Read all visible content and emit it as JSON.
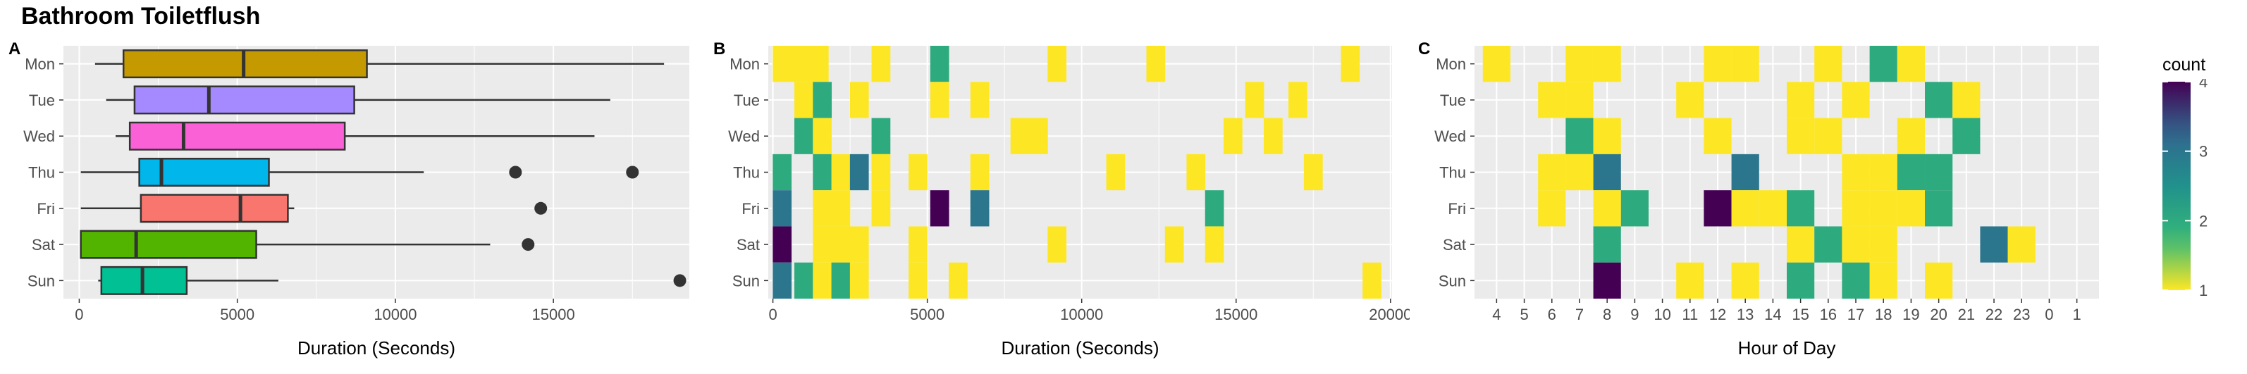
{
  "title": "Bathroom Toiletflush",
  "panel_labels": [
    "A",
    "B",
    "C"
  ],
  "colors": {
    "panel_bg": "#ebebeb",
    "grid": "#ffffff",
    "box_outline": "#333333",
    "viridis_low": "#fde725",
    "viridis_mid1": "#35b779",
    "viridis_mid2": "#21918c",
    "viridis_mid3": "#31688e",
    "viridis_high": "#440154"
  },
  "chart_data": [
    {
      "type": "box",
      "panel": "A",
      "categories": [
        "Mon",
        "Tue",
        "Wed",
        "Thu",
        "Fri",
        "Sat",
        "Sun"
      ],
      "xlabel": "Duration (Seconds)",
      "ylabel": "",
      "xlim": [
        -500,
        19300
      ],
      "xticks": [
        0,
        5000,
        10000,
        15000
      ],
      "grid": true,
      "boxes": [
        {
          "day": "Mon",
          "min": 500,
          "q1": 1400,
          "median": 5200,
          "q3": 9100,
          "max": 18500,
          "outliers": [],
          "color": "#c49a00"
        },
        {
          "day": "Tue",
          "min": 850,
          "q1": 1750,
          "median": 4100,
          "q3": 8700,
          "max": 16800,
          "outliers": [],
          "color": "#a58aff"
        },
        {
          "day": "Wed",
          "min": 1150,
          "q1": 1600,
          "median": 3300,
          "q3": 8400,
          "max": 16300,
          "outliers": [],
          "color": "#fb61d7"
        },
        {
          "day": "Thu",
          "min": 50,
          "q1": 1900,
          "median": 2600,
          "q3": 6000,
          "max": 10900,
          "outliers": [
            13800,
            17500
          ],
          "color": "#00b6eb"
        },
        {
          "day": "Fri",
          "min": 50,
          "q1": 1950,
          "median": 5100,
          "q3": 6600,
          "max": 6800,
          "outliers": [
            14600
          ],
          "color": "#f8766d"
        },
        {
          "day": "Sat",
          "min": 50,
          "q1": 50,
          "median": 1800,
          "q3": 5600,
          "max": 13000,
          "outliers": [
            14200
          ],
          "color": "#53b400"
        },
        {
          "day": "Sun",
          "min": 600,
          "q1": 700,
          "median": 2000,
          "q3": 3400,
          "max": 6300,
          "outliers": [
            19000
          ],
          "color": "#00c094"
        }
      ]
    },
    {
      "type": "heatmap",
      "panel": "B",
      "categories": [
        "Mon",
        "Tue",
        "Wed",
        "Thu",
        "Fri",
        "Sat",
        "Sun"
      ],
      "xlabel": "Duration (Seconds)",
      "ylabel": "",
      "xlim": [
        -150,
        20050
      ],
      "xticks": [
        0,
        5000,
        10000,
        15000,
        20000
      ],
      "bin_width": 610,
      "grid": true,
      "cells": [
        {
          "day": "Mon",
          "x": 300,
          "count": 1
        },
        {
          "day": "Mon",
          "x": 900,
          "count": 1
        },
        {
          "day": "Mon",
          "x": 1500,
          "count": 1
        },
        {
          "day": "Mon",
          "x": 3500,
          "count": 1
        },
        {
          "day": "Mon",
          "x": 5400,
          "count": 2
        },
        {
          "day": "Mon",
          "x": 9200,
          "count": 1
        },
        {
          "day": "Mon",
          "x": 12400,
          "count": 1
        },
        {
          "day": "Mon",
          "x": 18700,
          "count": 1
        },
        {
          "day": "Tue",
          "x": 1000,
          "count": 1
        },
        {
          "day": "Tue",
          "x": 1600,
          "count": 2
        },
        {
          "day": "Tue",
          "x": 2800,
          "count": 1
        },
        {
          "day": "Tue",
          "x": 5400,
          "count": 1
        },
        {
          "day": "Tue",
          "x": 6700,
          "count": 1
        },
        {
          "day": "Tue",
          "x": 15600,
          "count": 1
        },
        {
          "day": "Tue",
          "x": 17000,
          "count": 1
        },
        {
          "day": "Wed",
          "x": 1000,
          "count": 2
        },
        {
          "day": "Wed",
          "x": 1600,
          "count": 1
        },
        {
          "day": "Wed",
          "x": 3500,
          "count": 2
        },
        {
          "day": "Wed",
          "x": 8000,
          "count": 1
        },
        {
          "day": "Wed",
          "x": 8600,
          "count": 1
        },
        {
          "day": "Wed",
          "x": 14900,
          "count": 1
        },
        {
          "day": "Wed",
          "x": 16200,
          "count": 1
        },
        {
          "day": "Thu",
          "x": 300,
          "count": 2
        },
        {
          "day": "Thu",
          "x": 1600,
          "count": 2
        },
        {
          "day": "Thu",
          "x": 2200,
          "count": 1
        },
        {
          "day": "Thu",
          "x": 2800,
          "count": 3
        },
        {
          "day": "Thu",
          "x": 3500,
          "count": 1
        },
        {
          "day": "Thu",
          "x": 4700,
          "count": 1
        },
        {
          "day": "Thu",
          "x": 6700,
          "count": 1
        },
        {
          "day": "Thu",
          "x": 11100,
          "count": 1
        },
        {
          "day": "Thu",
          "x": 13700,
          "count": 1
        },
        {
          "day": "Thu",
          "x": 17500,
          "count": 1
        },
        {
          "day": "Fri",
          "x": 300,
          "count": 3
        },
        {
          "day": "Fri",
          "x": 1600,
          "count": 1
        },
        {
          "day": "Fri",
          "x": 2200,
          "count": 1
        },
        {
          "day": "Fri",
          "x": 3500,
          "count": 1
        },
        {
          "day": "Fri",
          "x": 5400,
          "count": 4
        },
        {
          "day": "Fri",
          "x": 6700,
          "count": 3
        },
        {
          "day": "Fri",
          "x": 14300,
          "count": 2
        },
        {
          "day": "Sat",
          "x": 300,
          "count": 4
        },
        {
          "day": "Sat",
          "x": 1600,
          "count": 1
        },
        {
          "day": "Sat",
          "x": 2200,
          "count": 1
        },
        {
          "day": "Sat",
          "x": 2800,
          "count": 1
        },
        {
          "day": "Sat",
          "x": 4700,
          "count": 1
        },
        {
          "day": "Sat",
          "x": 9200,
          "count": 1
        },
        {
          "day": "Sat",
          "x": 13000,
          "count": 1
        },
        {
          "day": "Sat",
          "x": 14300,
          "count": 1
        },
        {
          "day": "Sun",
          "x": 300,
          "count": 3
        },
        {
          "day": "Sun",
          "x": 1000,
          "count": 2
        },
        {
          "day": "Sun",
          "x": 1600,
          "count": 1
        },
        {
          "day": "Sun",
          "x": 2200,
          "count": 2
        },
        {
          "day": "Sun",
          "x": 2800,
          "count": 1
        },
        {
          "day": "Sun",
          "x": 4700,
          "count": 1
        },
        {
          "day": "Sun",
          "x": 6000,
          "count": 1
        },
        {
          "day": "Sun",
          "x": 19400,
          "count": 1
        }
      ]
    },
    {
      "type": "heatmap",
      "panel": "C",
      "categories": [
        "Mon",
        "Tue",
        "Wed",
        "Thu",
        "Fri",
        "Sat",
        "Sun"
      ],
      "xlabel": "Hour of Day",
      "ylabel": "",
      "hours": [
        "4",
        "5",
        "6",
        "7",
        "8",
        "9",
        "10",
        "11",
        "12",
        "13",
        "14",
        "15",
        "16",
        "17",
        "18",
        "19",
        "20",
        "21",
        "22",
        "23",
        "0",
        "1"
      ],
      "grid": true,
      "cells": [
        {
          "day": "Mon",
          "hour": "4",
          "count": 1
        },
        {
          "day": "Mon",
          "hour": "7",
          "count": 1
        },
        {
          "day": "Mon",
          "hour": "8",
          "count": 1
        },
        {
          "day": "Mon",
          "hour": "12",
          "count": 1
        },
        {
          "day": "Mon",
          "hour": "13",
          "count": 1
        },
        {
          "day": "Mon",
          "hour": "16",
          "count": 1
        },
        {
          "day": "Mon",
          "hour": "18",
          "count": 2
        },
        {
          "day": "Mon",
          "hour": "19",
          "count": 1
        },
        {
          "day": "Tue",
          "hour": "6",
          "count": 1
        },
        {
          "day": "Tue",
          "hour": "7",
          "count": 1
        },
        {
          "day": "Tue",
          "hour": "11",
          "count": 1
        },
        {
          "day": "Tue",
          "hour": "15",
          "count": 1
        },
        {
          "day": "Tue",
          "hour": "17",
          "count": 1
        },
        {
          "day": "Tue",
          "hour": "20",
          "count": 2
        },
        {
          "day": "Tue",
          "hour": "21",
          "count": 1
        },
        {
          "day": "Wed",
          "hour": "7",
          "count": 2
        },
        {
          "day": "Wed",
          "hour": "8",
          "count": 1
        },
        {
          "day": "Wed",
          "hour": "12",
          "count": 1
        },
        {
          "day": "Wed",
          "hour": "15",
          "count": 1
        },
        {
          "day": "Wed",
          "hour": "16",
          "count": 1
        },
        {
          "day": "Wed",
          "hour": "19",
          "count": 1
        },
        {
          "day": "Wed",
          "hour": "21",
          "count": 2
        },
        {
          "day": "Thu",
          "hour": "6",
          "count": 1
        },
        {
          "day": "Thu",
          "hour": "7",
          "count": 1
        },
        {
          "day": "Thu",
          "hour": "8",
          "count": 3
        },
        {
          "day": "Thu",
          "hour": "13",
          "count": 3
        },
        {
          "day": "Thu",
          "hour": "17",
          "count": 1
        },
        {
          "day": "Thu",
          "hour": "18",
          "count": 1
        },
        {
          "day": "Thu",
          "hour": "19",
          "count": 2
        },
        {
          "day": "Thu",
          "hour": "20",
          "count": 2
        },
        {
          "day": "Fri",
          "hour": "6",
          "count": 1
        },
        {
          "day": "Fri",
          "hour": "8",
          "count": 1
        },
        {
          "day": "Fri",
          "hour": "9",
          "count": 2
        },
        {
          "day": "Fri",
          "hour": "12",
          "count": 4
        },
        {
          "day": "Fri",
          "hour": "13",
          "count": 1
        },
        {
          "day": "Fri",
          "hour": "14",
          "count": 1
        },
        {
          "day": "Fri",
          "hour": "15",
          "count": 2
        },
        {
          "day": "Fri",
          "hour": "17",
          "count": 1
        },
        {
          "day": "Fri",
          "hour": "18",
          "count": 1
        },
        {
          "day": "Fri",
          "hour": "19",
          "count": 1
        },
        {
          "day": "Fri",
          "hour": "20",
          "count": 2
        },
        {
          "day": "Sat",
          "hour": "8",
          "count": 2
        },
        {
          "day": "Sat",
          "hour": "15",
          "count": 1
        },
        {
          "day": "Sat",
          "hour": "16",
          "count": 2
        },
        {
          "day": "Sat",
          "hour": "17",
          "count": 1
        },
        {
          "day": "Sat",
          "hour": "18",
          "count": 1
        },
        {
          "day": "Sat",
          "hour": "22",
          "count": 3
        },
        {
          "day": "Sat",
          "hour": "23",
          "count": 1
        },
        {
          "day": "Sun",
          "hour": "8",
          "count": 4
        },
        {
          "day": "Sun",
          "hour": "11",
          "count": 1
        },
        {
          "day": "Sun",
          "hour": "13",
          "count": 1
        },
        {
          "day": "Sun",
          "hour": "15",
          "count": 2
        },
        {
          "day": "Sun",
          "hour": "17",
          "count": 2
        },
        {
          "day": "Sun",
          "hour": "18",
          "count": 1
        },
        {
          "day": "Sun",
          "hour": "20",
          "count": 1
        }
      ],
      "legend": {
        "title": "count",
        "range": [
          1,
          4
        ],
        "ticks": [
          1,
          2,
          3,
          4
        ],
        "placement": "right"
      }
    }
  ]
}
